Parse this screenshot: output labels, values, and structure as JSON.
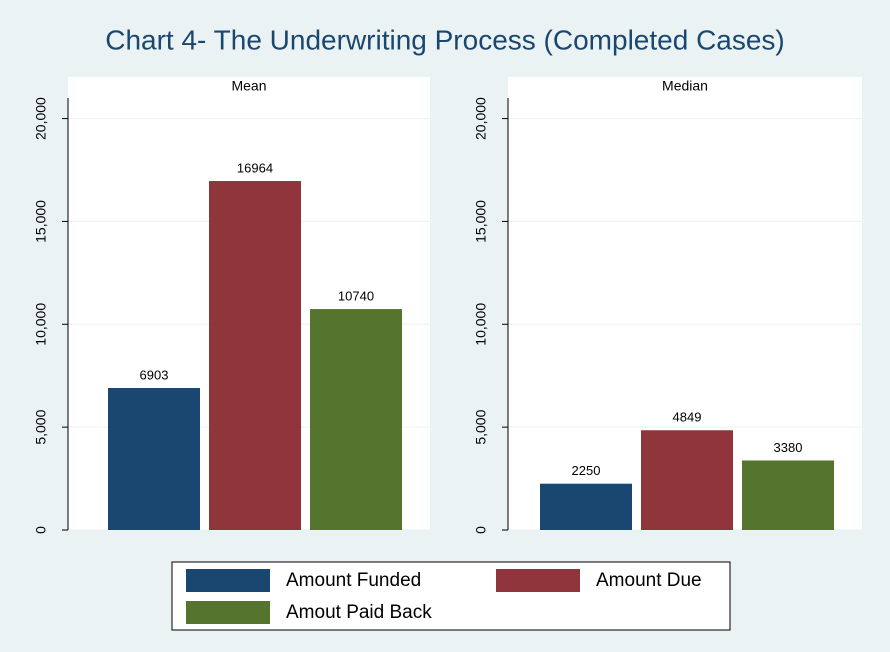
{
  "title": "Chart 4- The Underwriting Process (Completed Cases)",
  "chart_data": [
    {
      "type": "bar",
      "title": "Mean",
      "series": [
        {
          "name": "Amount Funded",
          "color": "#1a476f",
          "values": [
            6903
          ]
        },
        {
          "name": "Amount Due",
          "color": "#90353b",
          "values": [
            16964
          ]
        },
        {
          "name": "Amout Paid Back",
          "color": "#55752f",
          "values": [
            10740
          ]
        }
      ],
      "ylim": [
        0,
        21000
      ],
      "yticks": [
        0,
        {
          "value": 5000,
          "label": "5,000"
        },
        {
          "value": 10000,
          "label": "10,000"
        },
        {
          "value": 15000,
          "label": "15,000"
        },
        {
          "value": 20000,
          "label": "20,000"
        }
      ],
      "grid": true
    },
    {
      "type": "bar",
      "title": "Median",
      "series": [
        {
          "name": "Amount Funded",
          "color": "#1a476f",
          "values": [
            2250
          ]
        },
        {
          "name": "Amount Due",
          "color": "#90353b",
          "values": [
            4849
          ]
        },
        {
          "name": "Amout Paid Back",
          "color": "#55752f",
          "values": [
            3380
          ]
        }
      ],
      "ylim": [
        0,
        21000
      ],
      "yticks": [
        0,
        {
          "value": 5000,
          "label": "5,000"
        },
        {
          "value": 10000,
          "label": "10,000"
        },
        {
          "value": 15000,
          "label": "15,000"
        },
        {
          "value": 20000,
          "label": "20,000"
        }
      ],
      "grid": true
    }
  ]
}
